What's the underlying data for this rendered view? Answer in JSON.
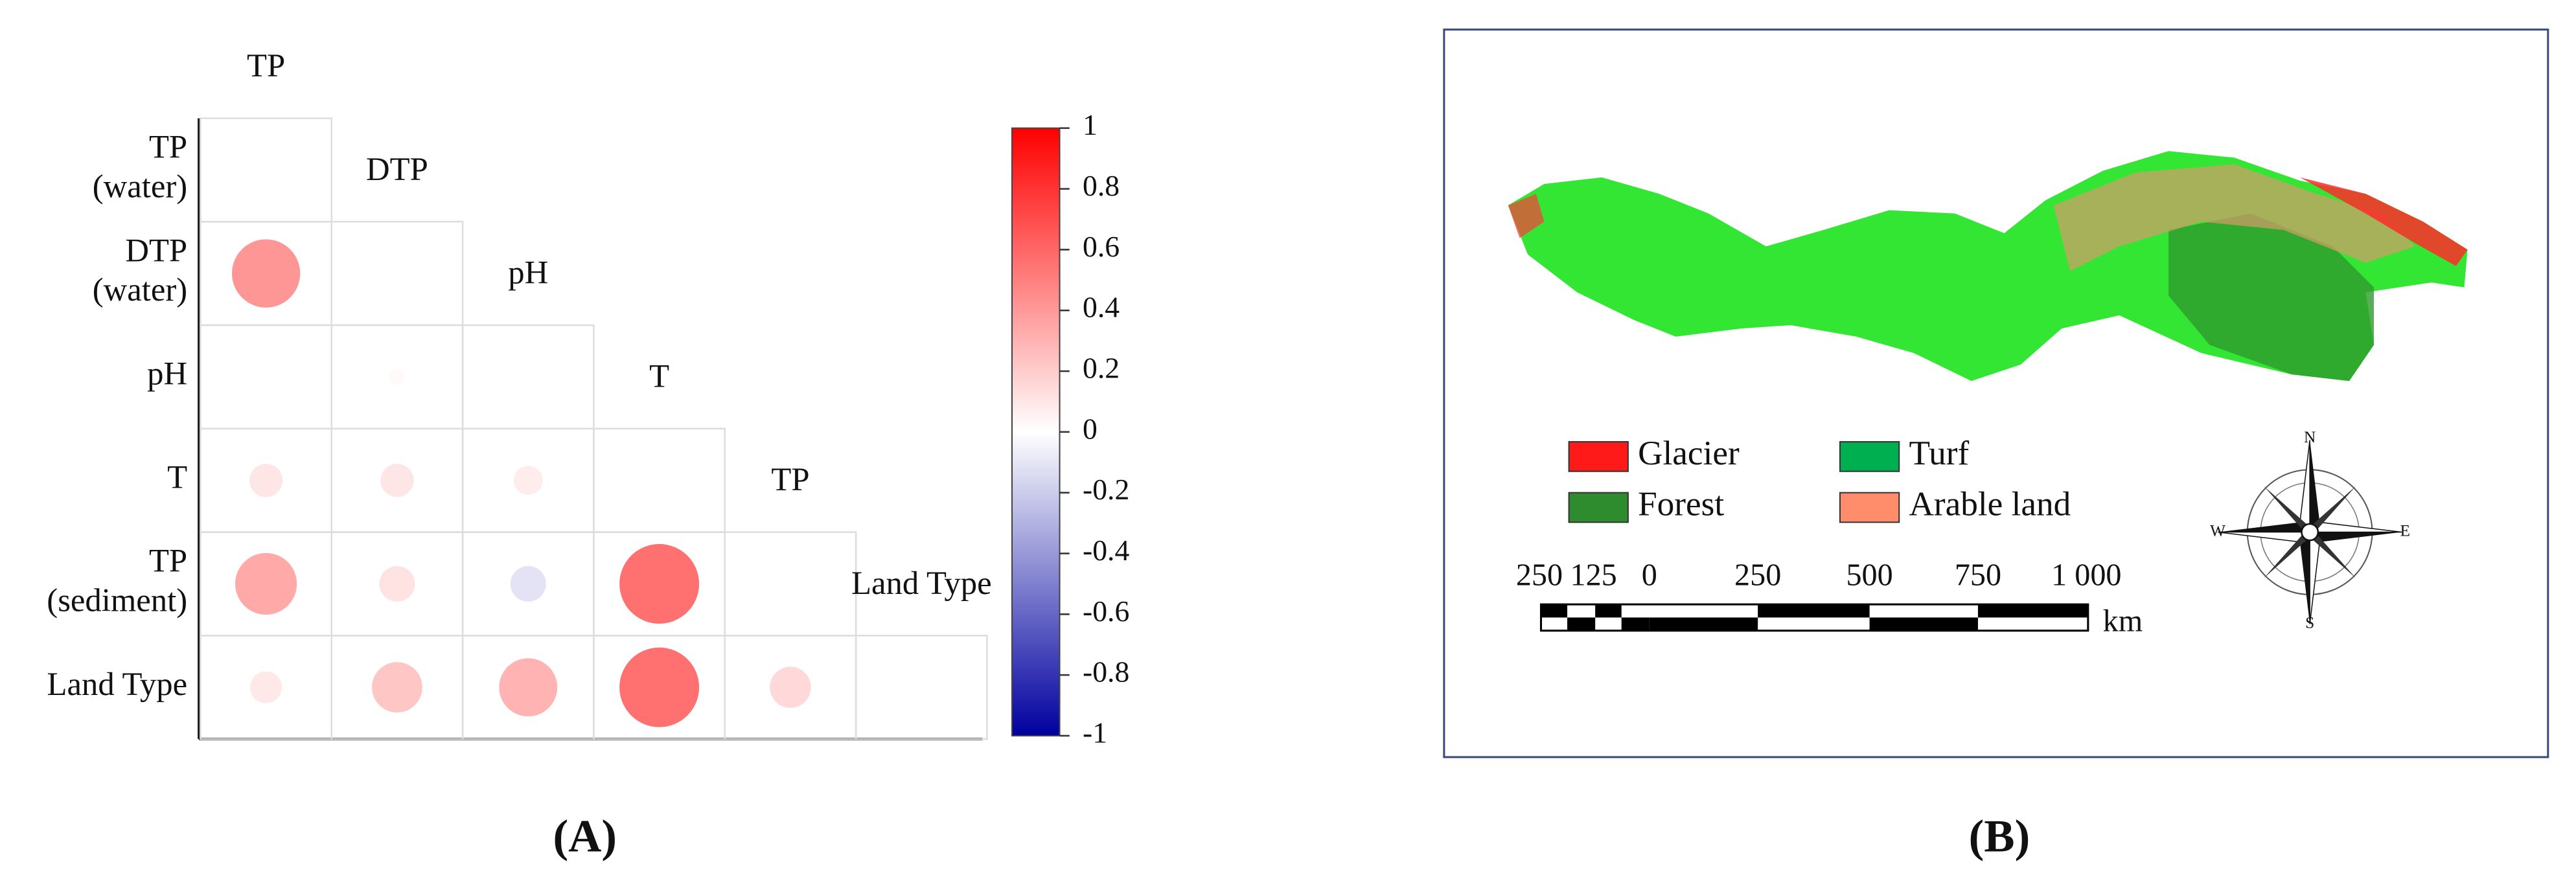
{
  "panel_a": {
    "label": "(A)",
    "column_labels": [
      "TP",
      "DTP",
      "pH",
      "T",
      "TP",
      "Land Type"
    ],
    "row_labels": [
      [
        "TP",
        "(water)"
      ],
      [
        "DTP",
        "(water)"
      ],
      [
        "pH"
      ],
      [
        "T"
      ],
      [
        "TP",
        "(sediment)"
      ],
      [
        "Land Type"
      ]
    ],
    "correlations": [
      [
        0.55
      ],
      [
        0,
        0.03
      ],
      [
        0.13,
        0.13,
        0.1
      ],
      [
        0.45,
        0.15,
        -0.15,
        0.75
      ],
      [
        0.12,
        0.3,
        0.4,
        0.75,
        0.2
      ]
    ],
    "colorbar": {
      "lim": [
        -1,
        1
      ],
      "ticks": [
        1,
        0.8,
        0.6,
        0.4,
        0.2,
        0,
        -0.2,
        -0.4,
        -0.6,
        -0.8,
        -1
      ]
    }
  },
  "panel_b": {
    "label": "(B)",
    "legend": [
      {
        "label": "Glacier",
        "color": "#ff1a1a"
      },
      {
        "label": "Turf",
        "color": "#00b050"
      },
      {
        "label": "Forest",
        "color": "#2e8b2e"
      },
      {
        "label": "Arable land",
        "color": "#ff8c6a"
      }
    ],
    "scale_labels": [
      "250",
      "125",
      "0",
      "250",
      "500",
      "750",
      "1 000"
    ],
    "scale_unit": "km",
    "compass": [
      "N",
      "E",
      "S",
      "W"
    ]
  }
}
